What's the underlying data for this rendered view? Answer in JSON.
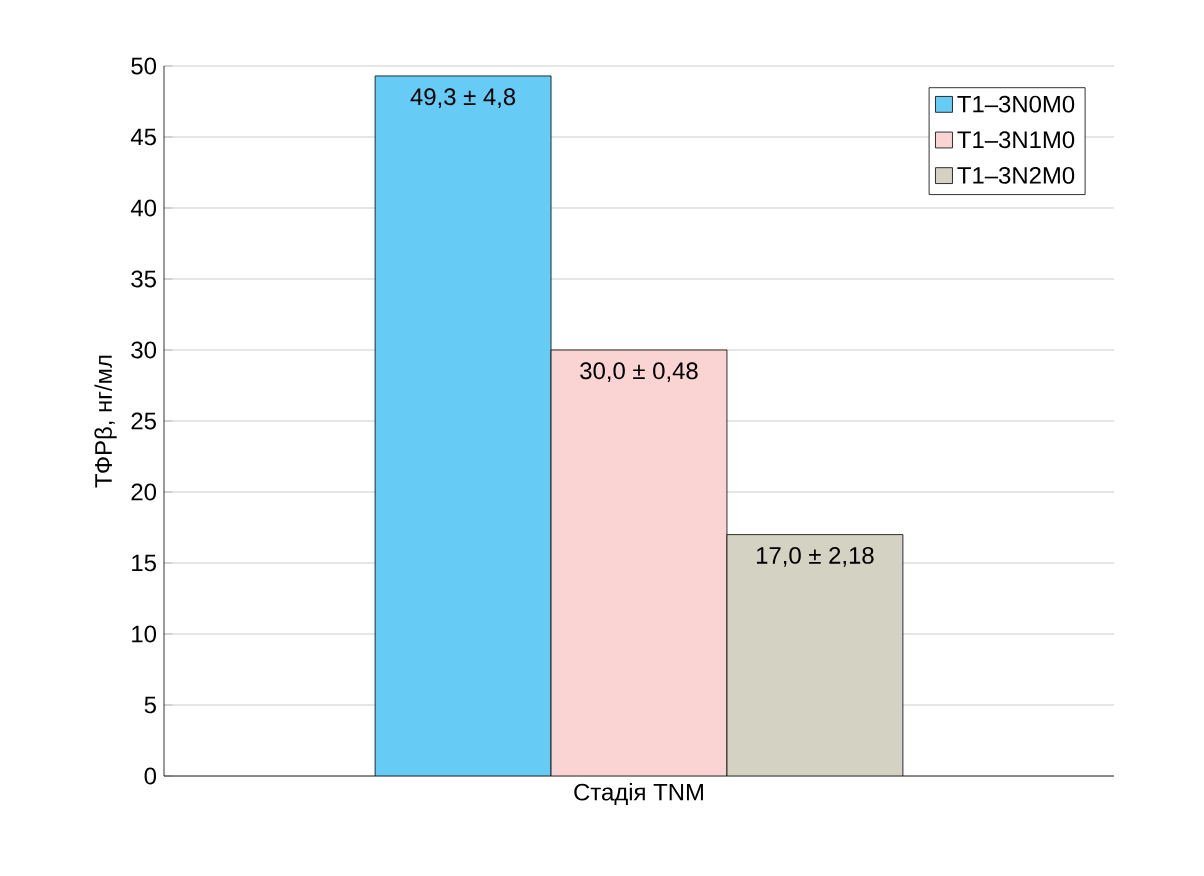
{
  "chart_data": {
    "type": "bar",
    "xlabel": "Стадія TNM",
    "ylabel": "ТФРβ, нг/мл",
    "categories": [
      null
    ],
    "series": [
      {
        "name": "T1–3N0M0",
        "color": "#66ccf5",
        "values": [
          49.3
        ],
        "value_labels": [
          "49,3 ± 4,8"
        ]
      },
      {
        "name": "T1–3N1M0",
        "color": "#f9d4d2",
        "values": [
          30.0
        ],
        "value_labels": [
          "30,0 ± 0,48"
        ]
      },
      {
        "name": "T1–3N2M0",
        "color": "#d4d2c2",
        "values": [
          17.0
        ],
        "value_labels": [
          "17,0 ± 2,18"
        ]
      }
    ],
    "ylim": [
      0,
      50
    ],
    "yticks": [
      0,
      5,
      10,
      15,
      20,
      25,
      30,
      35,
      40,
      45,
      50
    ],
    "grid": "y",
    "legend": "top right"
  }
}
